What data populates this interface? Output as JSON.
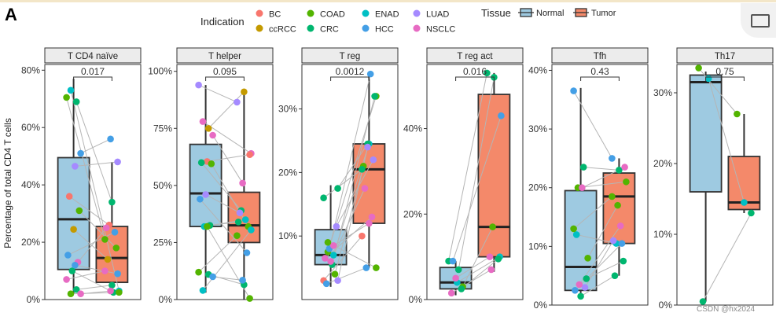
{
  "figure": {
    "panel_letter": "A",
    "watermark": "CSDN @hx2024",
    "y_axis_title": "Percentage of total CD4 T cells"
  },
  "legend": {
    "indication_title": "Indication",
    "indications": [
      {
        "name": "BC",
        "color": "#F8766D"
      },
      {
        "name": "ccRCC",
        "color": "#C49A00"
      },
      {
        "name": "COAD",
        "color": "#53B400"
      },
      {
        "name": "CRC",
        "color": "#00B66F"
      },
      {
        "name": "ENAD",
        "color": "#00BFC4"
      },
      {
        "name": "HCC",
        "color": "#449FE6"
      },
      {
        "name": "LUAD",
        "color": "#A58AFF"
      },
      {
        "name": "NSCLC",
        "color": "#E76BC3"
      }
    ],
    "tissue_title": "Tissue",
    "tissues": [
      {
        "name": "Normal",
        "color": "#9ECAE1"
      },
      {
        "name": "Tumor",
        "color": "#F4896A"
      }
    ]
  },
  "chart_data": [
    {
      "type": "box",
      "title": "T CD4 naïve",
      "pvalue": "0.017",
      "ylim": [
        0,
        82
      ],
      "yticks": [
        0,
        20,
        40,
        60,
        80
      ],
      "ytick_labels": [
        "0%",
        "20%",
        "40%",
        "60%",
        "80%"
      ],
      "boxes": {
        "Normal": {
          "whislo": 2,
          "q1": 10.5,
          "med": 28,
          "q3": 49.5,
          "whishi": 77
        },
        "Tumor": {
          "whislo": 2,
          "q1": 6,
          "med": 14.5,
          "q3": 25.5,
          "whishi": 48
        }
      },
      "pairs": [
        {
          "ind": "COAD",
          "normal": 70.5,
          "tumor": 21
        },
        {
          "ind": "CRC",
          "normal": 69,
          "tumor": 34
        },
        {
          "ind": "ENAD",
          "normal": 73,
          "tumor": 3
        },
        {
          "ind": "HCC",
          "normal": 51,
          "tumor": 56
        },
        {
          "ind": "LUAD",
          "normal": 46.5,
          "tumor": 48
        },
        {
          "ind": "BC",
          "normal": 36,
          "tumor": 26
        },
        {
          "ind": "COAD",
          "normal": 31,
          "tumor": 18
        },
        {
          "ind": "ccRCC",
          "normal": 24.5,
          "tumor": 14
        },
        {
          "ind": "HCC",
          "normal": 15.5,
          "tumor": 23.5
        },
        {
          "ind": "NSCLC",
          "normal": 13,
          "tumor": 25
        },
        {
          "ind": "CRC",
          "normal": 10,
          "tumor": 2.5
        },
        {
          "ind": "NSCLC",
          "normal": 7,
          "tumor": 10
        },
        {
          "ind": "CRC",
          "normal": 3.5,
          "tumor": 5
        },
        {
          "ind": "COAD",
          "normal": 2,
          "tumor": 2.5
        },
        {
          "ind": "NSCLC",
          "normal": 2,
          "tumor": 3
        },
        {
          "ind": "HCC",
          "normal": 12,
          "tumor": 9
        }
      ]
    },
    {
      "type": "box",
      "title": "T helper",
      "pvalue": "0.095",
      "ylim": [
        0,
        103
      ],
      "yticks": [
        0,
        25,
        50,
        75,
        100
      ],
      "ytick_labels": [
        "0%",
        "25%",
        "50%",
        "75%",
        "100%"
      ],
      "boxes": {
        "Normal": {
          "whislo": 3,
          "q1": 32,
          "med": 46.5,
          "q3": 68,
          "whishi": 94
        },
        "Tumor": {
          "whislo": 0,
          "q1": 25,
          "med": 32.5,
          "q3": 47,
          "whishi": 90
        }
      },
      "pairs": [
        {
          "ind": "LUAD",
          "normal": 94,
          "tumor": 86.5
        },
        {
          "ind": "ccRCC",
          "normal": 75,
          "tumor": 91
        },
        {
          "ind": "NSCLC",
          "normal": 78,
          "tumor": 64
        },
        {
          "ind": "NSCLC",
          "normal": 72,
          "tumor": 51
        },
        {
          "ind": "BC",
          "normal": 60.5,
          "tumor": 63.5
        },
        {
          "ind": "CRC",
          "normal": 60,
          "tumor": 39
        },
        {
          "ind": "COAD",
          "normal": 59.5,
          "tumor": 32
        },
        {
          "ind": "LUAD",
          "normal": 46,
          "tumor": 38
        },
        {
          "ind": "HCC",
          "normal": 44,
          "tumor": 20.5
        },
        {
          "ind": "CRC",
          "normal": 32.5,
          "tumor": 34
        },
        {
          "ind": "ENAD",
          "normal": 32,
          "tumor": 35
        },
        {
          "ind": "COAD",
          "normal": 12,
          "tumor": 28
        },
        {
          "ind": "CRC",
          "normal": 11,
          "tumor": 6.5
        },
        {
          "ind": "ENAD",
          "normal": 4,
          "tumor": 30.5
        },
        {
          "ind": "HCC",
          "normal": 10,
          "tumor": 8.5
        },
        {
          "ind": "COAD",
          "normal": 32,
          "tumor": 0.5
        }
      ]
    },
    {
      "type": "box",
      "title": "T reg",
      "pvalue": "0.0012",
      "ylim": [
        0,
        37
      ],
      "yticks": [
        10,
        20,
        30
      ],
      "ytick_labels": [
        "10%",
        "20%",
        "30%"
      ],
      "boxes": {
        "Normal": {
          "whislo": 2,
          "q1": 5.5,
          "med": 7,
          "q3": 11,
          "whishi": 18
        },
        "Tumor": {
          "whislo": 5,
          "q1": 12,
          "med": 20.5,
          "q3": 24.5,
          "whishi": 35.5
        }
      },
      "pairs": [
        {
          "ind": "BC",
          "normal": 3,
          "tumor": 10
        },
        {
          "ind": "ENAD",
          "normal": 7,
          "tumor": 24.5
        },
        {
          "ind": "COAD",
          "normal": 7.5,
          "tumor": 32
        },
        {
          "ind": "CRC",
          "normal": 17.5,
          "tumor": 24.5
        },
        {
          "ind": "CRC",
          "normal": 5.5,
          "tumor": 32
        },
        {
          "ind": "HCC",
          "normal": 2.5,
          "tumor": 5
        },
        {
          "ind": "LUAD",
          "normal": 11.5,
          "tumor": 22
        },
        {
          "ind": "NSCLC",
          "normal": 6,
          "tumor": 17.5
        },
        {
          "ind": "NSCLC",
          "normal": 6.5,
          "tumor": 13
        },
        {
          "ind": "COAD",
          "normal": 4,
          "tumor": 21
        },
        {
          "ind": "HCC",
          "normal": 8,
          "tumor": 35.5
        },
        {
          "ind": "CRC",
          "normal": 16,
          "tumor": 20.5
        },
        {
          "ind": "NSCLC",
          "normal": 8.5,
          "tumor": 12
        },
        {
          "ind": "COAD",
          "normal": 9,
          "tumor": 5
        },
        {
          "ind": "LUAD",
          "normal": 3,
          "tumor": 24
        }
      ]
    },
    {
      "type": "box",
      "title": "T reg act",
      "pvalue": "0.016",
      "ylim": [
        0,
        55
      ],
      "yticks": [
        0,
        20,
        40
      ],
      "ytick_labels": [
        "0%",
        "20%",
        "40%"
      ],
      "boxes": {
        "Normal": {
          "whislo": 1,
          "q1": 2.5,
          "med": 4,
          "q3": 7.5,
          "whishi": 9
        },
        "Tumor": {
          "whislo": 6.5,
          "q1": 10,
          "med": 17,
          "q3": 48,
          "whishi": 53
        }
      },
      "pairs": [
        {
          "ind": "CRC",
          "normal": 9,
          "tumor": 53
        },
        {
          "ind": "CRC",
          "normal": 7,
          "tumor": 52
        },
        {
          "ind": "HCC",
          "normal": 9,
          "tumor": 43
        },
        {
          "ind": "COAD",
          "normal": 3,
          "tumor": 17
        },
        {
          "ind": "ENAD",
          "normal": 4,
          "tumor": 10
        },
        {
          "ind": "NSCLC",
          "normal": 1.5,
          "tumor": 7
        },
        {
          "ind": "CRC",
          "normal": 2.5,
          "tumor": 9.5
        },
        {
          "ind": "NSCLC",
          "normal": 5,
          "tumor": 10
        }
      ]
    },
    {
      "type": "box",
      "title": "Tfh",
      "pvalue": "0.43",
      "ylim": [
        0,
        41
      ],
      "yticks": [
        0,
        10,
        20,
        30,
        40
      ],
      "ytick_labels": [
        "0%",
        "10%",
        "20%",
        "30%",
        "40%"
      ],
      "boxes": {
        "Normal": {
          "whislo": 1,
          "q1": 2.5,
          "med": 6.5,
          "q3": 19.5,
          "whishi": 37
        },
        "Tumor": {
          "whislo": 5,
          "q1": 10.5,
          "med": 18.5,
          "q3": 22.5,
          "whishi": 25
        }
      },
      "pairs": [
        {
          "ind": "HCC",
          "normal": 36.5,
          "tumor": 25
        },
        {
          "ind": "CRC",
          "normal": 23.5,
          "tumor": 23
        },
        {
          "ind": "COAD",
          "normal": 20,
          "tumor": 21
        },
        {
          "ind": "COAD",
          "normal": 8,
          "tumor": 17
        },
        {
          "ind": "NSCLC",
          "normal": 20,
          "tumor": 23.5
        },
        {
          "ind": "ENAD",
          "normal": 12,
          "tumor": 10.5
        },
        {
          "ind": "CRC",
          "normal": 4.5,
          "tumor": 7.5
        },
        {
          "ind": "CRC",
          "normal": 1.5,
          "tumor": 5
        },
        {
          "ind": "HCC",
          "normal": 2.5,
          "tumor": 10.5
        },
        {
          "ind": "LUAD",
          "normal": 3,
          "tumor": 11
        },
        {
          "ind": "NSCLC",
          "normal": 3.5,
          "tumor": 13.5
        },
        {
          "ind": "COAD",
          "normal": 13,
          "tumor": 18.5
        }
      ]
    },
    {
      "type": "box",
      "title": "Th17",
      "pvalue": "0.75",
      "ylim": [
        0,
        34
      ],
      "yticks": [
        0,
        10,
        20,
        30
      ],
      "ytick_labels": [
        "0%",
        "10%",
        "20%",
        "30%"
      ],
      "boxes": {
        "Normal": {
          "whislo": 0.5,
          "q1": 16,
          "med": 31.5,
          "q3": 32.5,
          "whishi": 33
        },
        "Tumor": {
          "whislo": 13,
          "q1": 13.5,
          "med": 14.5,
          "q3": 21,
          "whishi": 27
        }
      },
      "pairs": [
        {
          "ind": "COAD",
          "normal": 33.5,
          "tumor": 27
        },
        {
          "ind": "ENAD",
          "normal": 32,
          "tumor": 14.5
        },
        {
          "ind": "CRC",
          "normal": 0.5,
          "tumor": 13
        }
      ]
    }
  ]
}
